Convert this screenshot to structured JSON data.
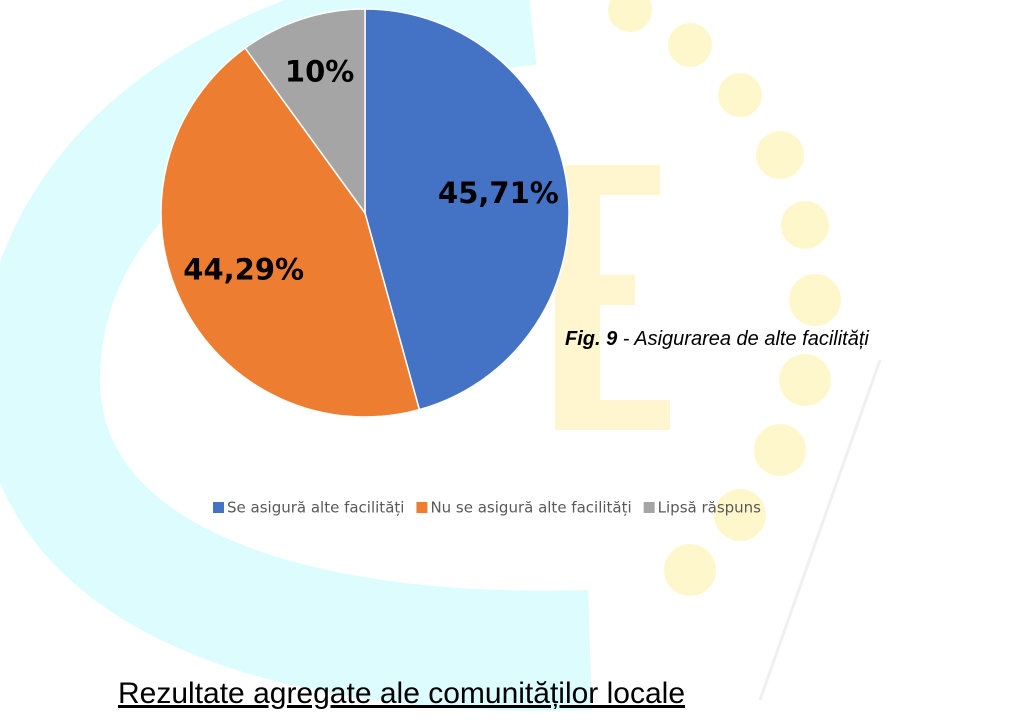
{
  "chart_data": {
    "type": "pie",
    "categories": [
      "Se asigură alte facilități",
      "Nu se asigură alte facilități",
      "Lipsă răspuns"
    ],
    "values": [
      45.71,
      44.29,
      10
    ],
    "value_labels": [
      "45,71%",
      "44,29%",
      "10%"
    ],
    "colors": [
      "#4472c4",
      "#ed7d31",
      "#a5a5a5"
    ],
    "legend": "bottom"
  },
  "caption": {
    "label": "Fig. 9",
    "text": "- Asigurarea de alte facilități"
  },
  "heading": "Rezultate agregate ale comunităților locale"
}
